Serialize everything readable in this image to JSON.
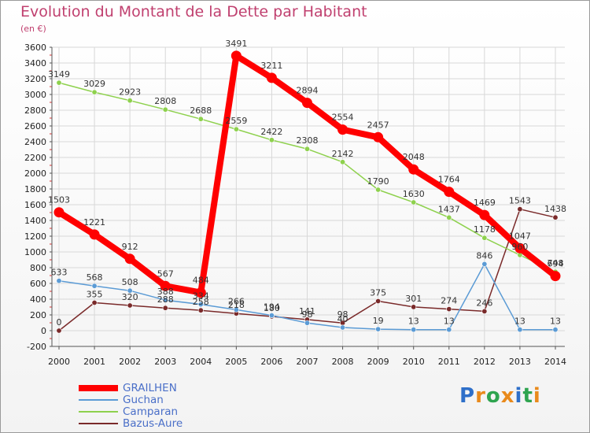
{
  "title": "Evolution du Montant de la Dette par Habitant",
  "subtitle": "(en €)",
  "brand": {
    "text": "Proxiti",
    "letters": [
      "P",
      "r",
      "o",
      "x",
      "i",
      "t",
      "i"
    ],
    "colors": [
      "#2e6fc9",
      "#e98a1c",
      "#2ea44f",
      "#e98a1c",
      "#2e6fc9",
      "#2ea44f",
      "#e98a1c"
    ]
  },
  "chart_data": {
    "type": "line",
    "title": "Evolution du Montant de la Dette par Habitant",
    "ylabel": "(en €)",
    "xlabel": "",
    "x": [
      "2000",
      "2001",
      "2002",
      "2003",
      "2004",
      "2005",
      "2006",
      "2007",
      "2008",
      "2009",
      "2010",
      "2011",
      "2012",
      "2013",
      "2014"
    ],
    "ylim": [
      -200,
      3600
    ],
    "yticks": [
      -200,
      0,
      200,
      400,
      600,
      800,
      1000,
      1200,
      1400,
      1600,
      1800,
      2000,
      2200,
      2400,
      2600,
      2800,
      3000,
      3200,
      3400,
      3600
    ],
    "grid": true,
    "legend_position": "bottom-left",
    "series": [
      {
        "name": "GRAILHEN",
        "color": "#ff0000",
        "values": [
          1503,
          1221,
          912,
          567,
          484,
          3491,
          3211,
          2894,
          2554,
          2457,
          2048,
          1764,
          1469,
          1047,
          694
        ]
      },
      {
        "name": "Guchan",
        "color": "#5b9bd5",
        "values": [
          633,
          568,
          508,
          388,
          334,
          266,
          194,
          98,
          40,
          19,
          13,
          13,
          846,
          13,
          13
        ]
      },
      {
        "name": "Camparan",
        "color": "#8ed14d",
        "values": [
          3149,
          3029,
          2923,
          2808,
          2688,
          2559,
          2422,
          2308,
          2142,
          1790,
          1630,
          1437,
          1178,
          960,
          748
        ]
      },
      {
        "name": "Bazus-Aure",
        "color": "#7a2a2a",
        "values": [
          0,
          355,
          320,
          288,
          258,
          218,
          180,
          141,
          98,
          375,
          301,
          274,
          246,
          1543,
          1438
        ]
      }
    ]
  }
}
